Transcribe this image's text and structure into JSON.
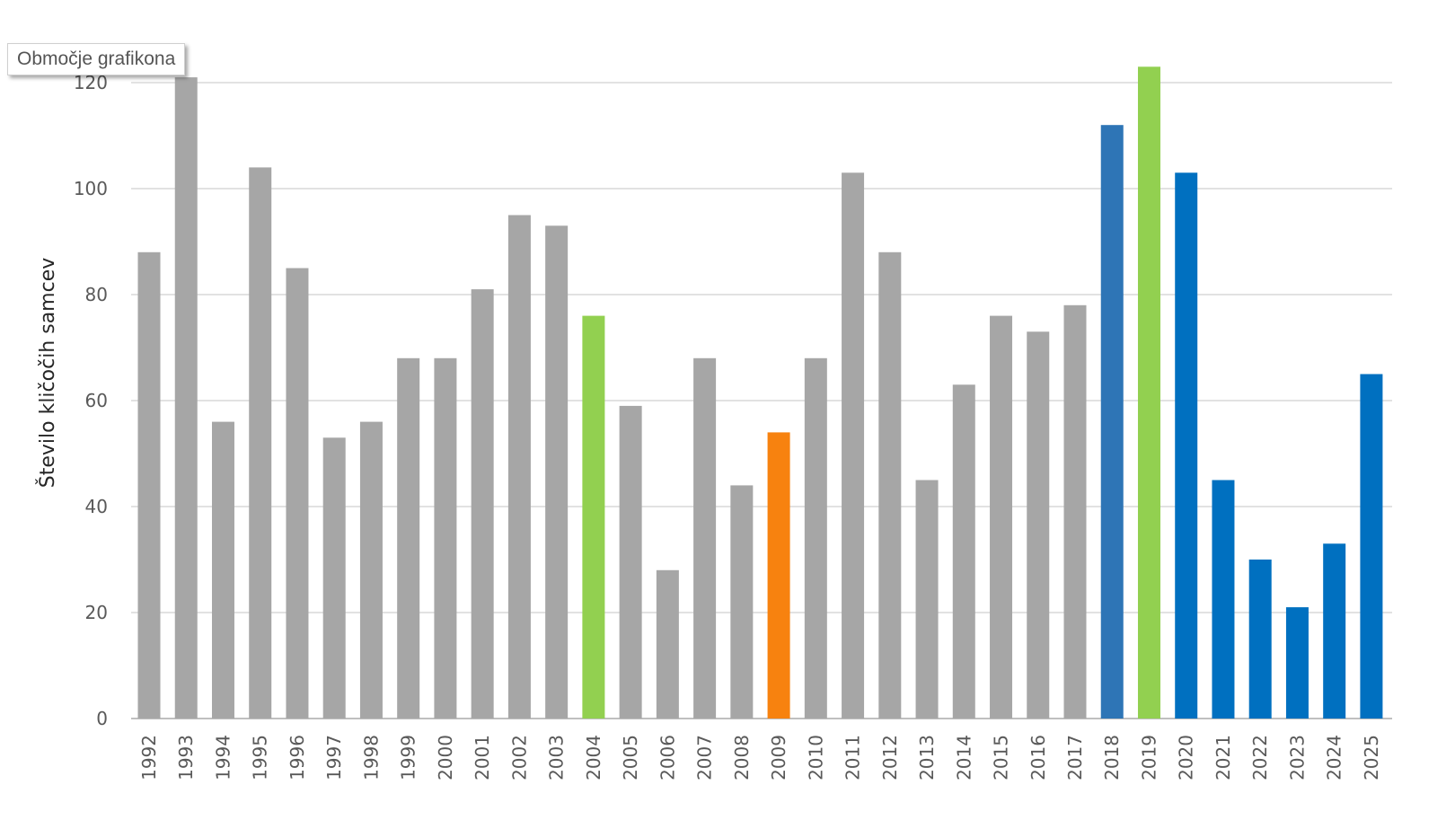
{
  "tooltip": "Območje grafikona",
  "chart_data": {
    "type": "bar",
    "title": "",
    "xlabel": "",
    "ylabel": "Število kličočih samcev",
    "ylim": [
      0,
      120
    ],
    "yticks": [
      0,
      20,
      40,
      60,
      80,
      100,
      120
    ],
    "grid": true,
    "categories": [
      "1992",
      "1993",
      "1994",
      "1995",
      "1996",
      "1997",
      "1998",
      "1999",
      "2000",
      "2001",
      "2002",
      "2003",
      "2004",
      "2005",
      "2006",
      "2007",
      "2008",
      "2009",
      "2010",
      "2011",
      "2012",
      "2013",
      "2014",
      "2015",
      "2016",
      "2017",
      "2018",
      "2019",
      "2020",
      "2021",
      "2022",
      "2023",
      "2024",
      "2025"
    ],
    "values": [
      88,
      121,
      56,
      104,
      85,
      53,
      56,
      68,
      68,
      81,
      95,
      93,
      76,
      59,
      28,
      68,
      44,
      54,
      68,
      103,
      88,
      45,
      63,
      76,
      73,
      78,
      112,
      123,
      103,
      45,
      30,
      21,
      33,
      65
    ],
    "colors": {
      "default": "#a6a6a6",
      "green": "#92d050",
      "orange": "#f7820f",
      "blue_2018": "#2e75b6",
      "blue": "#0070c0"
    },
    "bar_colors": [
      "default",
      "default",
      "default",
      "default",
      "default",
      "default",
      "default",
      "default",
      "default",
      "default",
      "default",
      "default",
      "green",
      "default",
      "default",
      "default",
      "default",
      "orange",
      "default",
      "default",
      "default",
      "default",
      "default",
      "default",
      "default",
      "default",
      "blue_2018",
      "green",
      "blue",
      "blue",
      "blue",
      "blue",
      "blue",
      "blue"
    ]
  }
}
